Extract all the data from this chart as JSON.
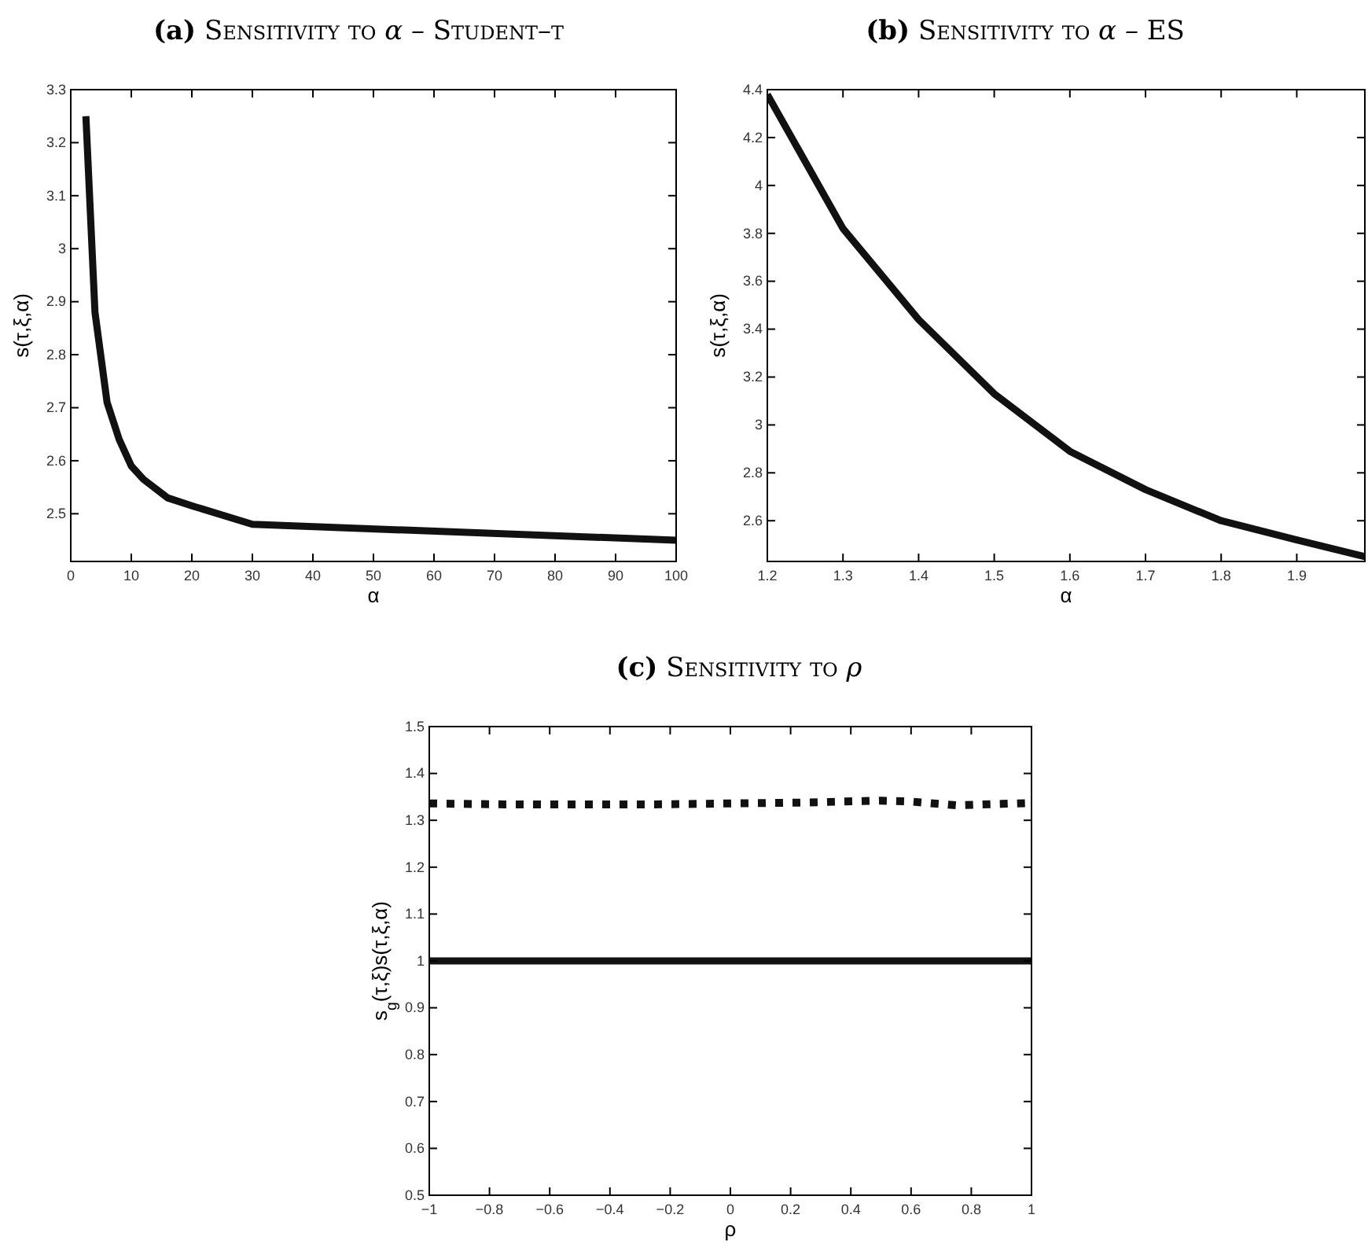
{
  "chart_data": [
    {
      "type": "line",
      "title": "(a) Sensitivity to α – Student–t",
      "xlabel": "α",
      "ylabel": "s(τ,ξ,α)",
      "x": [
        2.5,
        4,
        6,
        8,
        10,
        12,
        16,
        20,
        30,
        100
      ],
      "series": [
        {
          "color": "#111111",
          "values": [
            3.25,
            2.88,
            2.71,
            2.64,
            2.59,
            2.565,
            2.53,
            2.515,
            2.48,
            2.45
          ]
        }
      ],
      "xlim": [
        0,
        100
      ],
      "xticks": [
        0,
        10,
        20,
        30,
        40,
        50,
        60,
        70,
        80,
        90,
        100
      ],
      "ylim": [
        2.41,
        3.3
      ],
      "yticks": [
        2.5,
        2.6,
        2.7,
        2.8,
        2.9,
        3,
        3.1,
        3.2,
        3.3
      ],
      "line_style": "solid",
      "marker": "none"
    },
    {
      "type": "line",
      "title": "(b) Sensitivity to α – ES",
      "xlabel": "α",
      "ylabel": "s(τ,ξ,α)",
      "x": [
        1.2,
        1.3,
        1.4,
        1.5,
        1.6,
        1.7,
        1.8,
        1.9,
        1.99
      ],
      "series": [
        {
          "color": "#111111",
          "values": [
            4.38,
            3.82,
            3.44,
            3.13,
            2.89,
            2.73,
            2.6,
            2.52,
            2.45
          ]
        }
      ],
      "xlim": [
        1.2,
        1.99
      ],
      "xticks": [
        1.2,
        1.3,
        1.4,
        1.5,
        1.6,
        1.7,
        1.8,
        1.9
      ],
      "ylim": [
        2.43,
        4.4
      ],
      "yticks": [
        2.6,
        2.8,
        3,
        3.2,
        3.4,
        3.6,
        3.8,
        4,
        4.2,
        4.4
      ],
      "line_style": "solid",
      "marker": "none"
    },
    {
      "type": "line",
      "title": "(c) Sensitivity to ρ",
      "xlabel": "ρ",
      "ylabel": "s$_{g}$(τ,ξ)s(τ,ξ,α)",
      "x": [
        -1,
        -0.75,
        -0.5,
        -0.25,
        0,
        0.25,
        0.5,
        0.6,
        0.75,
        0.9,
        1
      ],
      "series": [
        {
          "color": "#111111",
          "line_style": "dotted",
          "values": [
            1.336,
            1.334,
            1.334,
            1.334,
            1.336,
            1.338,
            1.342,
            1.34,
            1.332,
            1.335,
            1.337
          ]
        },
        {
          "color": "#111111",
          "line_style": "solid",
          "values": [
            1,
            1,
            1,
            1,
            1,
            1,
            1,
            1,
            1,
            1,
            1
          ]
        }
      ],
      "xlim": [
        -1,
        1
      ],
      "xticks": [
        {
          "value": -1,
          "label": "−1"
        },
        {
          "value": -0.8,
          "label": "−0.8"
        },
        {
          "value": -0.6,
          "label": "−0.6"
        },
        {
          "value": -0.4,
          "label": "−0.4"
        },
        {
          "value": -0.2,
          "label": "−0.2"
        },
        0,
        0.2,
        0.4,
        0.6,
        0.8,
        1
      ],
      "ylim": [
        0.5,
        1.5
      ],
      "yticks": [
        0.5,
        0.6,
        0.7,
        0.8,
        0.9,
        1,
        1.1,
        1.2,
        1.3,
        1.4,
        1.5
      ],
      "marker": "none"
    }
  ]
}
